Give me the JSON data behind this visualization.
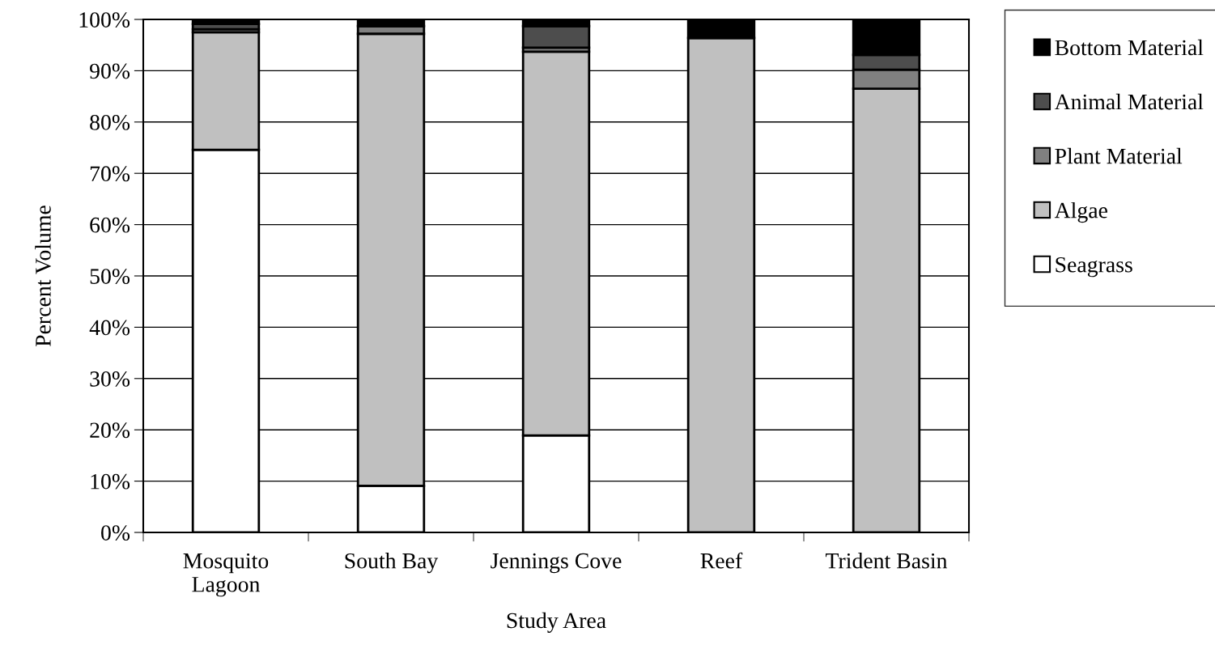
{
  "chart_data": {
    "type": "bar",
    "stacked": true,
    "xlabel": "Study Area",
    "ylabel": "Percent Volume",
    "categories": [
      "Mosquito\nLagoon",
      "South Bay",
      "Jennings Cove",
      "Reef",
      "Trident Basin"
    ],
    "series": [
      {
        "name": "Seagrass",
        "color": "#ffffff",
        "values": [
          74.6,
          9.1,
          18.9,
          0,
          0
        ]
      },
      {
        "name": "Algae",
        "color": "#c0c0c0",
        "values": [
          22.9,
          88.1,
          74.8,
          96.4,
          86.5
        ]
      },
      {
        "name": "Plant Material",
        "color": "#808080",
        "values": [
          0.6,
          1.5,
          0.8,
          0,
          3.7
        ]
      },
      {
        "name": "Animal Material",
        "color": "#4d4d4d",
        "values": [
          1.0,
          0,
          4.2,
          0,
          2.9
        ]
      },
      {
        "name": "Bottom Material",
        "color": "#000000",
        "values": [
          0.9,
          1.3,
          1.3,
          3.6,
          6.9
        ]
      }
    ],
    "ylim": [
      0,
      100
    ],
    "yticks": [
      {
        "value": 0,
        "label": "0%"
      },
      {
        "value": 10,
        "label": "10%"
      },
      {
        "value": 20,
        "label": "20%"
      },
      {
        "value": 30,
        "label": "30%"
      },
      {
        "value": 40,
        "label": "40%"
      },
      {
        "value": 50,
        "label": "50%"
      },
      {
        "value": 60,
        "label": "60%"
      },
      {
        "value": 70,
        "label": "70%"
      },
      {
        "value": 80,
        "label": "80%"
      },
      {
        "value": 90,
        "label": "90%"
      },
      {
        "value": 100,
        "label": "100%"
      }
    ],
    "grid": "y",
    "legend": "right"
  }
}
